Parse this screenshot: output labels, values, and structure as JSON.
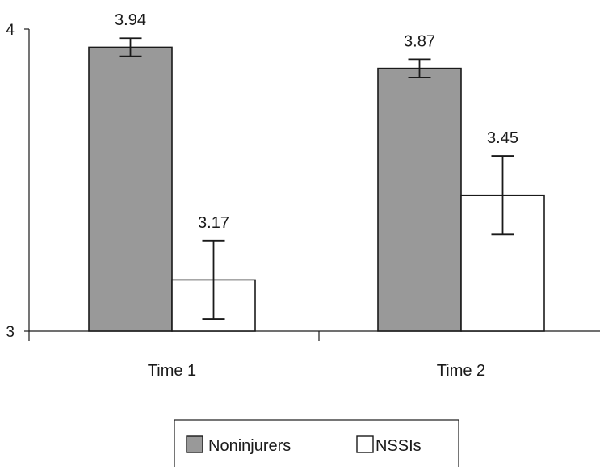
{
  "chart_data": {
    "type": "bar",
    "categories": [
      "Time 1",
      "Time 2"
    ],
    "ylim": [
      3,
      4
    ],
    "yticks": [
      3,
      4
    ],
    "grid": false,
    "legend_position": "bottom-center",
    "series": [
      {
        "name": "Noninjurers",
        "color": "#999999",
        "values": [
          3.94,
          3.87
        ],
        "data_labels": [
          "3.94",
          "3.87"
        ],
        "error_low": [
          3.91,
          3.84
        ],
        "error_high": [
          3.97,
          3.9
        ]
      },
      {
        "name": "NSSIs",
        "color": "#ffffff",
        "values": [
          3.17,
          3.45
        ],
        "data_labels": [
          "3.17",
          "3.45"
        ],
        "error_low": [
          3.04,
          3.32
        ],
        "error_high": [
          3.3,
          3.58
        ]
      }
    ]
  }
}
